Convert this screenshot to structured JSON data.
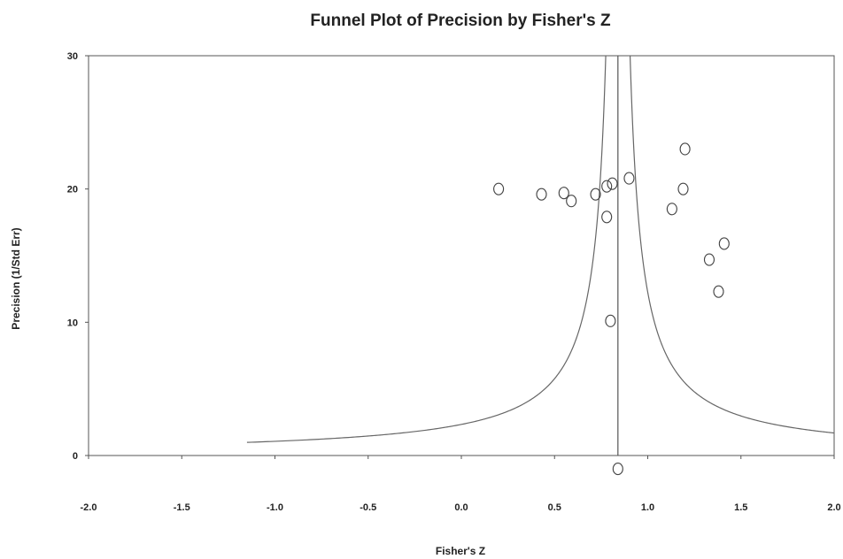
{
  "chart_data": {
    "type": "scatter",
    "title": "Funnel Plot of Precision by Fisher's Z",
    "xlabel": "Fisher's Z",
    "ylabel": "Precision (1/Std Err)",
    "xlim": [
      -2.0,
      2.0
    ],
    "ylim": [
      0,
      30
    ],
    "x_ticks": [
      -2.0,
      -1.5,
      -1.0,
      -0.5,
      0.0,
      0.5,
      1.0,
      1.5,
      2.0
    ],
    "x_tick_labels": [
      "-2.0",
      "-1.5",
      "-1.0",
      "-0.5",
      "0.0",
      "0.5",
      "1.0",
      "1.5",
      "2.0"
    ],
    "y_ticks": [
      0,
      10,
      20,
      30
    ],
    "y_tick_labels": [
      "0",
      "10",
      "20",
      "30"
    ],
    "grid": false,
    "mean_effect": 0.84,
    "points": [
      {
        "x": 0.2,
        "y": 20.0
      },
      {
        "x": 0.43,
        "y": 19.6
      },
      {
        "x": 0.55,
        "y": 19.7
      },
      {
        "x": 0.59,
        "y": 19.1
      },
      {
        "x": 0.72,
        "y": 19.6
      },
      {
        "x": 0.78,
        "y": 20.2
      },
      {
        "x": 0.81,
        "y": 20.4
      },
      {
        "x": 0.9,
        "y": 20.8
      },
      {
        "x": 0.78,
        "y": 17.9
      },
      {
        "x": 0.8,
        "y": 10.1
      },
      {
        "x": 1.2,
        "y": 23.0
      },
      {
        "x": 1.19,
        "y": 20.0
      },
      {
        "x": 1.13,
        "y": 18.5
      },
      {
        "x": 1.41,
        "y": 15.9
      },
      {
        "x": 1.33,
        "y": 14.7
      },
      {
        "x": 1.38,
        "y": 12.3
      },
      {
        "x": 0.84,
        "y": -1.0
      }
    ]
  }
}
